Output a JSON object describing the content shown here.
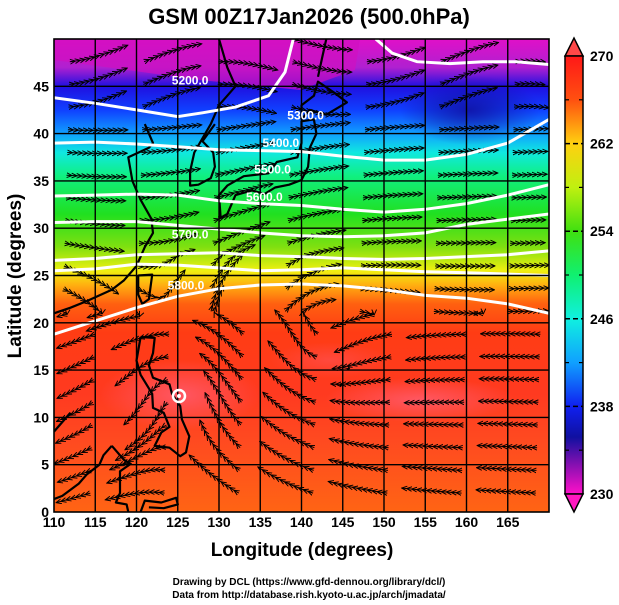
{
  "title": "GSM 00Z17Jan2026 (500.0hPa)",
  "map": {
    "xlabel": "Longitude (degrees)",
    "ylabel": "Latitude  (degrees)",
    "lon_range": [
      110,
      170
    ],
    "lat_range": [
      0,
      50
    ],
    "x_ticks": [
      "110",
      "115",
      "120",
      "125",
      "130",
      "135",
      "140",
      "145",
      "150",
      "155",
      "160",
      "165"
    ],
    "y_ticks": [
      "0",
      "5",
      "10",
      "15",
      "20",
      "25",
      "30",
      "35",
      "40",
      "45"
    ],
    "grid_step_degrees": 5,
    "contour_labels": [
      {
        "value": "5200.0",
        "lon": 126.5,
        "lat": 45.2
      },
      {
        "value": "5300.0",
        "lon": 140.5,
        "lat": 41.5
      },
      {
        "value": "5400.0",
        "lon": 137.5,
        "lat": 38.6
      },
      {
        "value": "5500.0",
        "lon": 136.5,
        "lat": 35.8
      },
      {
        "value": "5600.0",
        "lon": 135.5,
        "lat": 32.9
      },
      {
        "value": "5700.0",
        "lon": 126.5,
        "lat": 28.9
      },
      {
        "value": "5800.0",
        "lon": 126.0,
        "lat": 23.5
      }
    ],
    "shading_variable_range": [
      230,
      270
    ]
  },
  "colorbar": {
    "min": 230,
    "max": 270,
    "ticks": [
      "270",
      "262",
      "254",
      "246",
      "238",
      "230"
    ],
    "colors": [
      "#ff10c0",
      "#a020c0",
      "#1010d0",
      "#1060ff",
      "#10e0ff",
      "#10ffb0",
      "#10f040",
      "#80f020",
      "#ffff10",
      "#ffa010",
      "#ff4010",
      "#ff2020"
    ]
  },
  "credits": {
    "line1": "Drawing by DCL (https://www.gfd-dennou.org/library/dcl/)",
    "line2": "Data from http://database.rish.kyoto-u.ac.jp/arch/jmadata/"
  }
}
